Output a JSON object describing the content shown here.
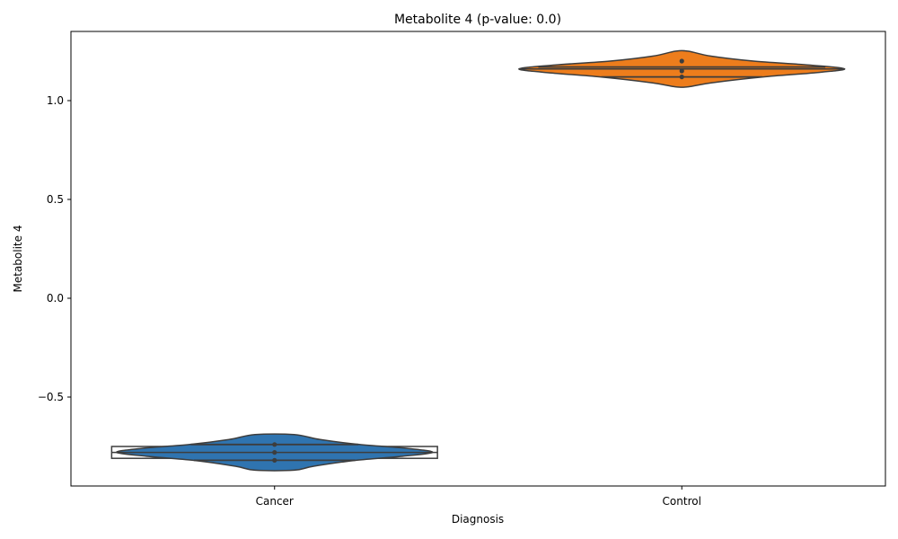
{
  "chart_data": {
    "type": "violin",
    "title": "Metabolite 4 (p-value: 0.0)",
    "xlabel": "Diagnosis",
    "ylabel": "Metabolite 4",
    "categories": [
      "Cancer",
      "Control"
    ],
    "ylim": [
      -0.95,
      1.35
    ],
    "yticks": [
      -0.5,
      0.0,
      0.5,
      1.0
    ],
    "ytick_labels": [
      "−0.5",
      "0.0",
      "0.5",
      "1.0"
    ],
    "grid": false,
    "series": [
      {
        "name": "Cancer",
        "color": "#2f74b0",
        "points": [
          -0.74,
          -0.78,
          -0.82
        ],
        "q1": -0.82,
        "median": -0.78,
        "q3": -0.74,
        "min": -0.87,
        "max": -0.69,
        "profile": [
          {
            "y": -0.87,
            "w": 0.12
          },
          {
            "y": -0.85,
            "w": 0.24
          },
          {
            "y": -0.82,
            "w": 0.5
          },
          {
            "y": -0.8,
            "w": 0.78
          },
          {
            "y": -0.78,
            "w": 0.97
          },
          {
            "y": -0.76,
            "w": 0.82
          },
          {
            "y": -0.74,
            "w": 0.52
          },
          {
            "y": -0.715,
            "w": 0.28
          },
          {
            "y": -0.69,
            "w": 0.12
          }
        ],
        "box": {
          "low": -0.81,
          "high": -0.75,
          "mid": -0.78,
          "width_frac": 1.0
        }
      },
      {
        "name": "Control",
        "color": "#ed7d1c",
        "points": [
          1.2,
          1.15,
          1.12
        ],
        "q1": 1.12,
        "median": 1.16,
        "q3": 1.17,
        "min": 1.07,
        "max": 1.25,
        "profile": [
          {
            "y": 1.07,
            "w": 0.04
          },
          {
            "y": 1.09,
            "w": 0.18
          },
          {
            "y": 1.12,
            "w": 0.5
          },
          {
            "y": 1.14,
            "w": 0.8
          },
          {
            "y": 1.16,
            "w": 1.0
          },
          {
            "y": 1.18,
            "w": 0.78
          },
          {
            "y": 1.2,
            "w": 0.44
          },
          {
            "y": 1.225,
            "w": 0.18
          },
          {
            "y": 1.25,
            "w": 0.04
          }
        ]
      }
    ]
  }
}
